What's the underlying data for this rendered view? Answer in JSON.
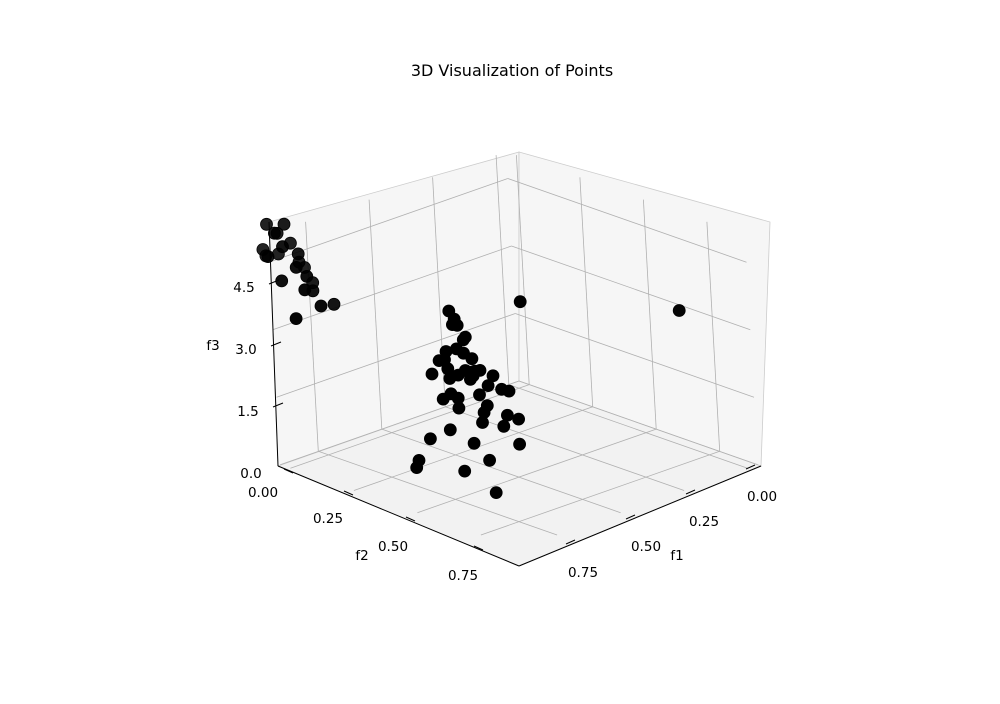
{
  "chart_data": {
    "type": "scatter",
    "title": "3D Visualization of Points",
    "xlabel": "f1",
    "ylabel": "f2",
    "zlabel": "f3",
    "xticks": [
      "0.00",
      "0.25",
      "0.50",
      "0.75"
    ],
    "yticks": [
      "0.00",
      "0.25",
      "0.50",
      "0.75"
    ],
    "zticks": [
      "0.0",
      "1.5",
      "3.0",
      "4.5"
    ],
    "grid": true,
    "marker_color": "#000000",
    "points": [
      {
        "x": 0.64,
        "y": 0.87,
        "z": 4.7
      },
      {
        "x": 0.66,
        "y": 0.86,
        "z": 4.4
      },
      {
        "x": 0.67,
        "y": 0.88,
        "z": 4.6
      },
      {
        "x": 0.62,
        "y": 0.84,
        "z": 4.3
      },
      {
        "x": 0.69,
        "y": 0.86,
        "z": 4.2
      },
      {
        "x": 0.65,
        "y": 0.83,
        "z": 4.0
      },
      {
        "x": 0.7,
        "y": 0.88,
        "z": 3.9
      },
      {
        "x": 0.63,
        "y": 0.88,
        "z": 3.8
      },
      {
        "x": 0.61,
        "y": 0.82,
        "z": 3.7
      },
      {
        "x": 0.67,
        "y": 0.82,
        "z": 3.6
      },
      {
        "x": 0.72,
        "y": 0.86,
        "z": 3.5
      },
      {
        "x": 0.59,
        "y": 0.87,
        "z": 3.5
      },
      {
        "x": 0.74,
        "y": 0.9,
        "z": 3.6
      },
      {
        "x": 0.57,
        "y": 0.83,
        "z": 3.4
      },
      {
        "x": 0.66,
        "y": 0.9,
        "z": 3.3
      },
      {
        "x": 0.7,
        "y": 0.82,
        "z": 3.4
      },
      {
        "x": 0.62,
        "y": 0.8,
        "z": 3.2
      },
      {
        "x": 0.73,
        "y": 0.8,
        "z": 3.3
      },
      {
        "x": 0.6,
        "y": 0.91,
        "z": 3.3
      },
      {
        "x": 0.68,
        "y": 0.84,
        "z": 3.2
      },
      {
        "x": 0.64,
        "y": 0.79,
        "z": 3.1
      },
      {
        "x": 0.71,
        "y": 0.92,
        "z": 3.0
      },
      {
        "x": 0.75,
        "y": 0.84,
        "z": 3.2
      },
      {
        "x": 0.58,
        "y": 0.79,
        "z": 3.0
      },
      {
        "x": 0.77,
        "y": 0.78,
        "z": 3.0
      },
      {
        "x": 0.66,
        "y": 0.93,
        "z": 2.9
      },
      {
        "x": 0.72,
        "y": 0.76,
        "z": 2.9
      },
      {
        "x": 0.62,
        "y": 0.86,
        "z": 2.8
      },
      {
        "x": 0.8,
        "y": 0.82,
        "z": 2.6
      },
      {
        "x": 0.68,
        "y": 0.78,
        "z": 2.5
      },
      {
        "x": 0.74,
        "y": 0.86,
        "z": 2.4
      },
      {
        "x": 0.64,
        "y": 0.89,
        "z": 2.1
      },
      {
        "x": 0.7,
        "y": 0.74,
        "z": 2.0
      },
      {
        "x": 0.78,
        "y": 0.76,
        "z": 1.8
      },
      {
        "x": 0.66,
        "y": 0.82,
        "z": 1.7
      },
      {
        "x": 0.76,
        "y": 0.86,
        "z": 1.6
      },
      {
        "x": 0.6,
        "y": 0.93,
        "z": 1.9
      },
      {
        "x": 0.72,
        "y": 0.92,
        "z": 1.4
      },
      {
        "x": 0.57,
        "y": 0.95,
        "z": 1.4
      },
      {
        "x": 0.8,
        "y": 0.88,
        "z": 1.0
      },
      {
        "x": 0.58,
        "y": 0.97,
        "z": 1.3
      },
      {
        "x": 0.74,
        "y": 0.72,
        "z": 2.2
      },
      {
        "x": 0.69,
        "y": 0.9,
        "z": 2.7
      },
      {
        "x": 0.63,
        "y": 0.76,
        "z": 2.6
      },
      {
        "x": 0.55,
        "y": 0.8,
        "z": 3.1
      },
      {
        "x": 0.79,
        "y": 0.9,
        "z": 2.8
      },
      {
        "x": 0.0,
        "y": 0.94,
        "z": 5.5
      },
      {
        "x": 0.04,
        "y": 0.95,
        "z": 5.4
      },
      {
        "x": 0.06,
        "y": 0.93,
        "z": 5.6
      },
      {
        "x": 0.02,
        "y": 0.92,
        "z": 5.3
      },
      {
        "x": 0.08,
        "y": 0.96,
        "z": 5.2
      },
      {
        "x": 0.1,
        "y": 0.92,
        "z": 5.0
      },
      {
        "x": 0.05,
        "y": 0.9,
        "z": 5.1
      },
      {
        "x": 0.12,
        "y": 0.95,
        "z": 4.8
      },
      {
        "x": 0.03,
        "y": 0.97,
        "z": 4.9
      },
      {
        "x": 0.07,
        "y": 0.89,
        "z": 4.7
      },
      {
        "x": 0.14,
        "y": 0.93,
        "z": 4.6
      },
      {
        "x": 0.09,
        "y": 0.98,
        "z": 4.5
      },
      {
        "x": 0.01,
        "y": 0.91,
        "z": 4.8
      },
      {
        "x": 0.11,
        "y": 0.88,
        "z": 4.3
      },
      {
        "x": 0.16,
        "y": 0.96,
        "z": 4.4
      },
      {
        "x": 0.13,
        "y": 0.9,
        "z": 4.2
      },
      {
        "x": 0.06,
        "y": 0.86,
        "z": 4.5
      },
      {
        "x": 0.18,
        "y": 0.92,
        "z": 4.0
      },
      {
        "x": 0.15,
        "y": 0.99,
        "z": 3.8
      },
      {
        "x": -0.02,
        "y": 0.94,
        "z": 4.9
      },
      {
        "x": 0.17,
        "y": 0.86,
        "z": 3.9
      },
      {
        "x": -0.03,
        "y": 0.92,
        "z": 4.7
      },
      {
        "x": 0.96,
        "y": 0.9,
        "z": 5.6
      },
      {
        "x": 0.91,
        "y": 0.24,
        "z": 4.0
      }
    ]
  }
}
